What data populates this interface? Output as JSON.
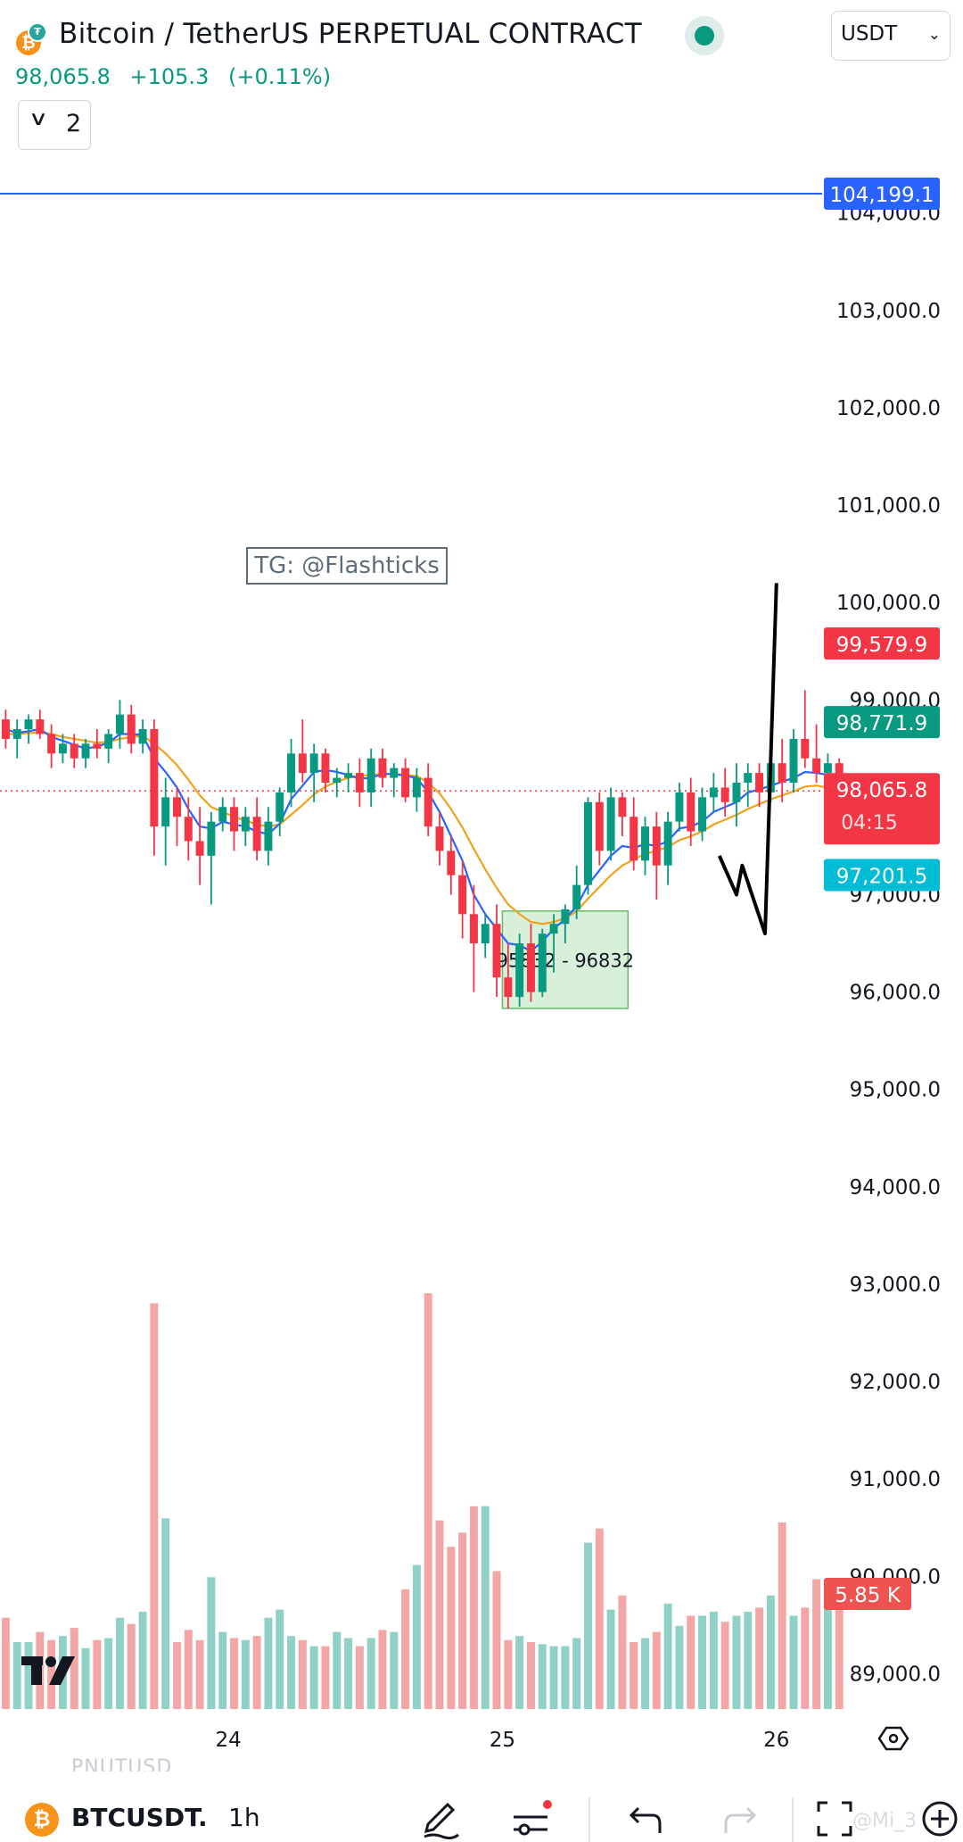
{
  "header": {
    "symbol_title": "Bitcoin / TetherUS PERPETUAL CONTRACT",
    "last_price": "98,065.8",
    "change": "+105.3",
    "change_percent": "(+0.11%)",
    "currency": "USDT",
    "collapsed_count": "2",
    "coin_glyph": "₿"
  },
  "annotation": {
    "watermark_box": "TG: @Flashticks"
  },
  "colors": {
    "up": "#089981",
    "down": "#f23645",
    "ma_fast": "#2962ff",
    "ma_slow": "#f0a21f",
    "zone_fill": "#d8efd9",
    "zone_stroke": "#66bb6a",
    "hline": "#2962ff",
    "cyan": "#00bcd4"
  },
  "chart_data": {
    "type": "candlestick",
    "y_axis": {
      "min": 88500,
      "max": 105500,
      "ticks": [
        "89,000.0",
        "90,000.0",
        "91,000.0",
        "92,000.0",
        "93,000.0",
        "94,000.0",
        "95,000.0",
        "96,000.0",
        "97,000.0",
        "98,000.0",
        "99,000.0",
        "100,000.0",
        "101,000.0",
        "102,000.0",
        "103,000.0",
        "104,000.0"
      ],
      "tick_values": [
        89000,
        90000,
        91000,
        92000,
        93000,
        94000,
        95000,
        96000,
        97000,
        98000,
        99000,
        100000,
        101000,
        102000,
        103000,
        104000
      ]
    },
    "x_axis": {
      "labels": [
        "24",
        "25",
        "26"
      ],
      "label_hours": [
        0,
        24,
        48
      ],
      "start_hour": -20,
      "end_hour": 52
    },
    "candles_start_hour": -20,
    "candle_hours": 1,
    "candles": [
      [
        98800,
        98900,
        98500,
        98600
      ],
      [
        98600,
        98800,
        98400,
        98700
      ],
      [
        98700,
        98850,
        98550,
        98800
      ],
      [
        98800,
        98900,
        98600,
        98650
      ],
      [
        98650,
        98750,
        98300,
        98450
      ],
      [
        98450,
        98650,
        98350,
        98550
      ],
      [
        98550,
        98650,
        98300,
        98400
      ],
      [
        98400,
        98600,
        98300,
        98550
      ],
      [
        98550,
        98700,
        98400,
        98500
      ],
      [
        98500,
        98700,
        98350,
        98650
      ],
      [
        98650,
        99000,
        98500,
        98850
      ],
      [
        98850,
        98950,
        98450,
        98550
      ],
      [
        98550,
        98800,
        98450,
        98700
      ],
      [
        98700,
        98800,
        97400,
        97700
      ],
      [
        97700,
        98200,
        97300,
        98000
      ],
      [
        98000,
        98100,
        97500,
        97800
      ],
      [
        97800,
        98000,
        97350,
        97550
      ],
      [
        97550,
        97900,
        97100,
        97400
      ],
      [
        97400,
        97850,
        96900,
        97750
      ],
      [
        97750,
        98000,
        97650,
        97900
      ],
      [
        97900,
        98000,
        97450,
        97650
      ],
      [
        97650,
        97900,
        97500,
        97800
      ],
      [
        97800,
        98000,
        97350,
        97450
      ],
      [
        97450,
        97900,
        97300,
        97750
      ],
      [
        97750,
        98100,
        97600,
        98050
      ],
      [
        98050,
        98600,
        97900,
        98450
      ],
      [
        98450,
        98800,
        98150,
        98250
      ],
      [
        98250,
        98550,
        97950,
        98450
      ],
      [
        98450,
        98500,
        98050,
        98150
      ],
      [
        98150,
        98300,
        98000,
        98200
      ],
      [
        98200,
        98350,
        98050,
        98250
      ],
      [
        98250,
        98400,
        97900,
        98050
      ],
      [
        98050,
        98500,
        97900,
        98400
      ],
      [
        98400,
        98500,
        98100,
        98200
      ],
      [
        98200,
        98350,
        98000,
        98300
      ],
      [
        98300,
        98400,
        97950,
        98000
      ],
      [
        98000,
        98300,
        97850,
        98200
      ],
      [
        98200,
        98350,
        97600,
        97700
      ],
      [
        97700,
        97850,
        97300,
        97450
      ],
      [
        97450,
        97600,
        97000,
        97200
      ],
      [
        97200,
        97350,
        96550,
        96800
      ],
      [
        96800,
        97100,
        96000,
        96500
      ],
      [
        96500,
        96800,
        96350,
        96700
      ],
      [
        96700,
        96900,
        95950,
        96150
      ],
      [
        96150,
        96500,
        95832,
        95950
      ],
      [
        95950,
        96600,
        95850,
        96500
      ],
      [
        96500,
        96700,
        95900,
        96000
      ],
      [
        96000,
        96650,
        95950,
        96600
      ],
      [
        96600,
        96800,
        96200,
        96700
      ],
      [
        96700,
        96900,
        96500,
        96850
      ],
      [
        96850,
        97300,
        96750,
        97100
      ],
      [
        97100,
        98000,
        97000,
        97950
      ],
      [
        97950,
        98050,
        97300,
        97450
      ],
      [
        97450,
        98100,
        97350,
        98000
      ],
      [
        98000,
        98050,
        97600,
        97800
      ],
      [
        97800,
        98000,
        97250,
        97350
      ],
      [
        97350,
        97800,
        97200,
        97700
      ],
      [
        97700,
        97850,
        96950,
        97300
      ],
      [
        97300,
        97850,
        97100,
        97750
      ],
      [
        97750,
        98150,
        97650,
        98050
      ],
      [
        98050,
        98200,
        97500,
        97650
      ],
      [
        97650,
        98100,
        97550,
        98000
      ],
      [
        98000,
        98250,
        97850,
        98100
      ],
      [
        98100,
        98300,
        97800,
        97950
      ],
      [
        97950,
        98350,
        97700,
        98150
      ],
      [
        98150,
        98350,
        97900,
        98250
      ],
      [
        98250,
        98350,
        97900,
        98050
      ],
      [
        98050,
        98550,
        97950,
        98350
      ],
      [
        98350,
        98600,
        97950,
        98150
      ],
      [
        98150,
        98700,
        98050,
        98600
      ],
      [
        98600,
        99100,
        98300,
        98400
      ],
      [
        98400,
        98750,
        98150,
        98250
      ],
      [
        98250,
        98450,
        97950,
        98350
      ],
      [
        98350,
        98400,
        97850,
        98065.8
      ]
    ],
    "volumes": [
      0.45,
      0.33,
      0.33,
      0.38,
      0.34,
      0.36,
      0.4,
      0.3,
      0.34,
      0.35,
      0.45,
      0.42,
      0.48,
      2.0,
      0.94,
      0.33,
      0.39,
      0.34,
      0.65,
      0.38,
      0.35,
      0.34,
      0.36,
      0.45,
      0.49,
      0.36,
      0.34,
      0.31,
      0.31,
      0.38,
      0.35,
      0.31,
      0.35,
      0.39,
      0.38,
      0.59,
      0.71,
      2.05,
      0.93,
      0.8,
      0.87,
      1.0,
      1.0,
      0.68,
      0.34,
      0.36,
      0.33,
      0.32,
      0.31,
      0.31,
      0.35,
      0.82,
      0.89,
      0.49,
      0.56,
      0.33,
      0.35,
      0.38,
      0.52,
      0.41,
      0.46,
      0.46,
      0.48,
      0.43,
      0.46,
      0.48,
      0.5,
      0.56,
      0.92,
      0.46,
      0.5,
      0.64,
      0.6,
      0.49
    ],
    "volume_max": 2.2,
    "ma_fast": [
      98700,
      98660,
      98680,
      98700,
      98620,
      98580,
      98540,
      98500,
      98520,
      98560,
      98650,
      98650,
      98640,
      98400,
      98260,
      98100,
      97880,
      97700,
      97680,
      97750,
      97720,
      97700,
      97650,
      97620,
      97730,
      97980,
      98120,
      98260,
      98280,
      98260,
      98230,
      98190,
      98200,
      98240,
      98240,
      98220,
      98200,
      98050,
      97850,
      97600,
      97350,
      97000,
      96800,
      96650,
      96500,
      96480,
      96420,
      96520,
      96650,
      96750,
      96880,
      97100,
      97250,
      97400,
      97500,
      97480,
      97520,
      97500,
      97550,
      97680,
      97700,
      97750,
      97850,
      97900,
      97950,
      98050,
      98080,
      98120,
      98160,
      98200,
      98260,
      98250,
      98230,
      98150
    ],
    "ma_slow": [
      98650,
      98650,
      98660,
      98670,
      98650,
      98620,
      98600,
      98580,
      98560,
      98570,
      98600,
      98620,
      98630,
      98550,
      98450,
      98330,
      98180,
      98020,
      97900,
      97850,
      97800,
      97760,
      97720,
      97700,
      97720,
      97820,
      97920,
      98030,
      98110,
      98160,
      98200,
      98220,
      98230,
      98240,
      98240,
      98230,
      98220,
      98150,
      98040,
      97880,
      97690,
      97470,
      97260,
      97070,
      96900,
      96800,
      96720,
      96700,
      96720,
      96760,
      96830,
      96960,
      97080,
      97200,
      97300,
      97360,
      97420,
      97450,
      97490,
      97560,
      97600,
      97650,
      97720,
      97770,
      97820,
      97880,
      97930,
      97980,
      98020,
      98060,
      98110,
      98120,
      98100,
      97900
    ],
    "demand_zone": {
      "low": 95832,
      "high": 96832,
      "start_hour": 24,
      "end_hour": 35,
      "label": "95832 - 96832"
    },
    "projection_path": [
      [
        43,
        97400
      ],
      [
        44.5,
        97000
      ],
      [
        45,
        97300
      ],
      [
        47,
        96600
      ],
      [
        48,
        100200
      ]
    ],
    "horizontal_line": {
      "value": 104199.1
    },
    "current_price_line": 98065.8,
    "price_labels": [
      {
        "value": 104199.1,
        "text": "104,199.1",
        "color": "#2962ff"
      },
      {
        "value": 99579.9,
        "text": "99,579.9",
        "color": "#f23645"
      },
      {
        "value": 98771.9,
        "text": "98,771.9",
        "color": "#089981"
      },
      {
        "value": 98065.8,
        "text": "98,065.8",
        "sub": "04:15",
        "color": "#f23645"
      },
      {
        "value": 97201.5,
        "text": "97,201.5",
        "color": "#00bcd4"
      }
    ],
    "volume_label": {
      "text": "5.85 K",
      "color": "#ef5350"
    }
  },
  "bottom_bar": {
    "ghost_symbol": "PNUTUSD",
    "symbol": "BTCUSDT.",
    "interval": "1h",
    "icons": [
      "pen-icon",
      "indicators-icon",
      "undo-icon",
      "redo-icon",
      "fullscreen-icon",
      "add-icon"
    ],
    "watermark": "@Mi_3"
  }
}
